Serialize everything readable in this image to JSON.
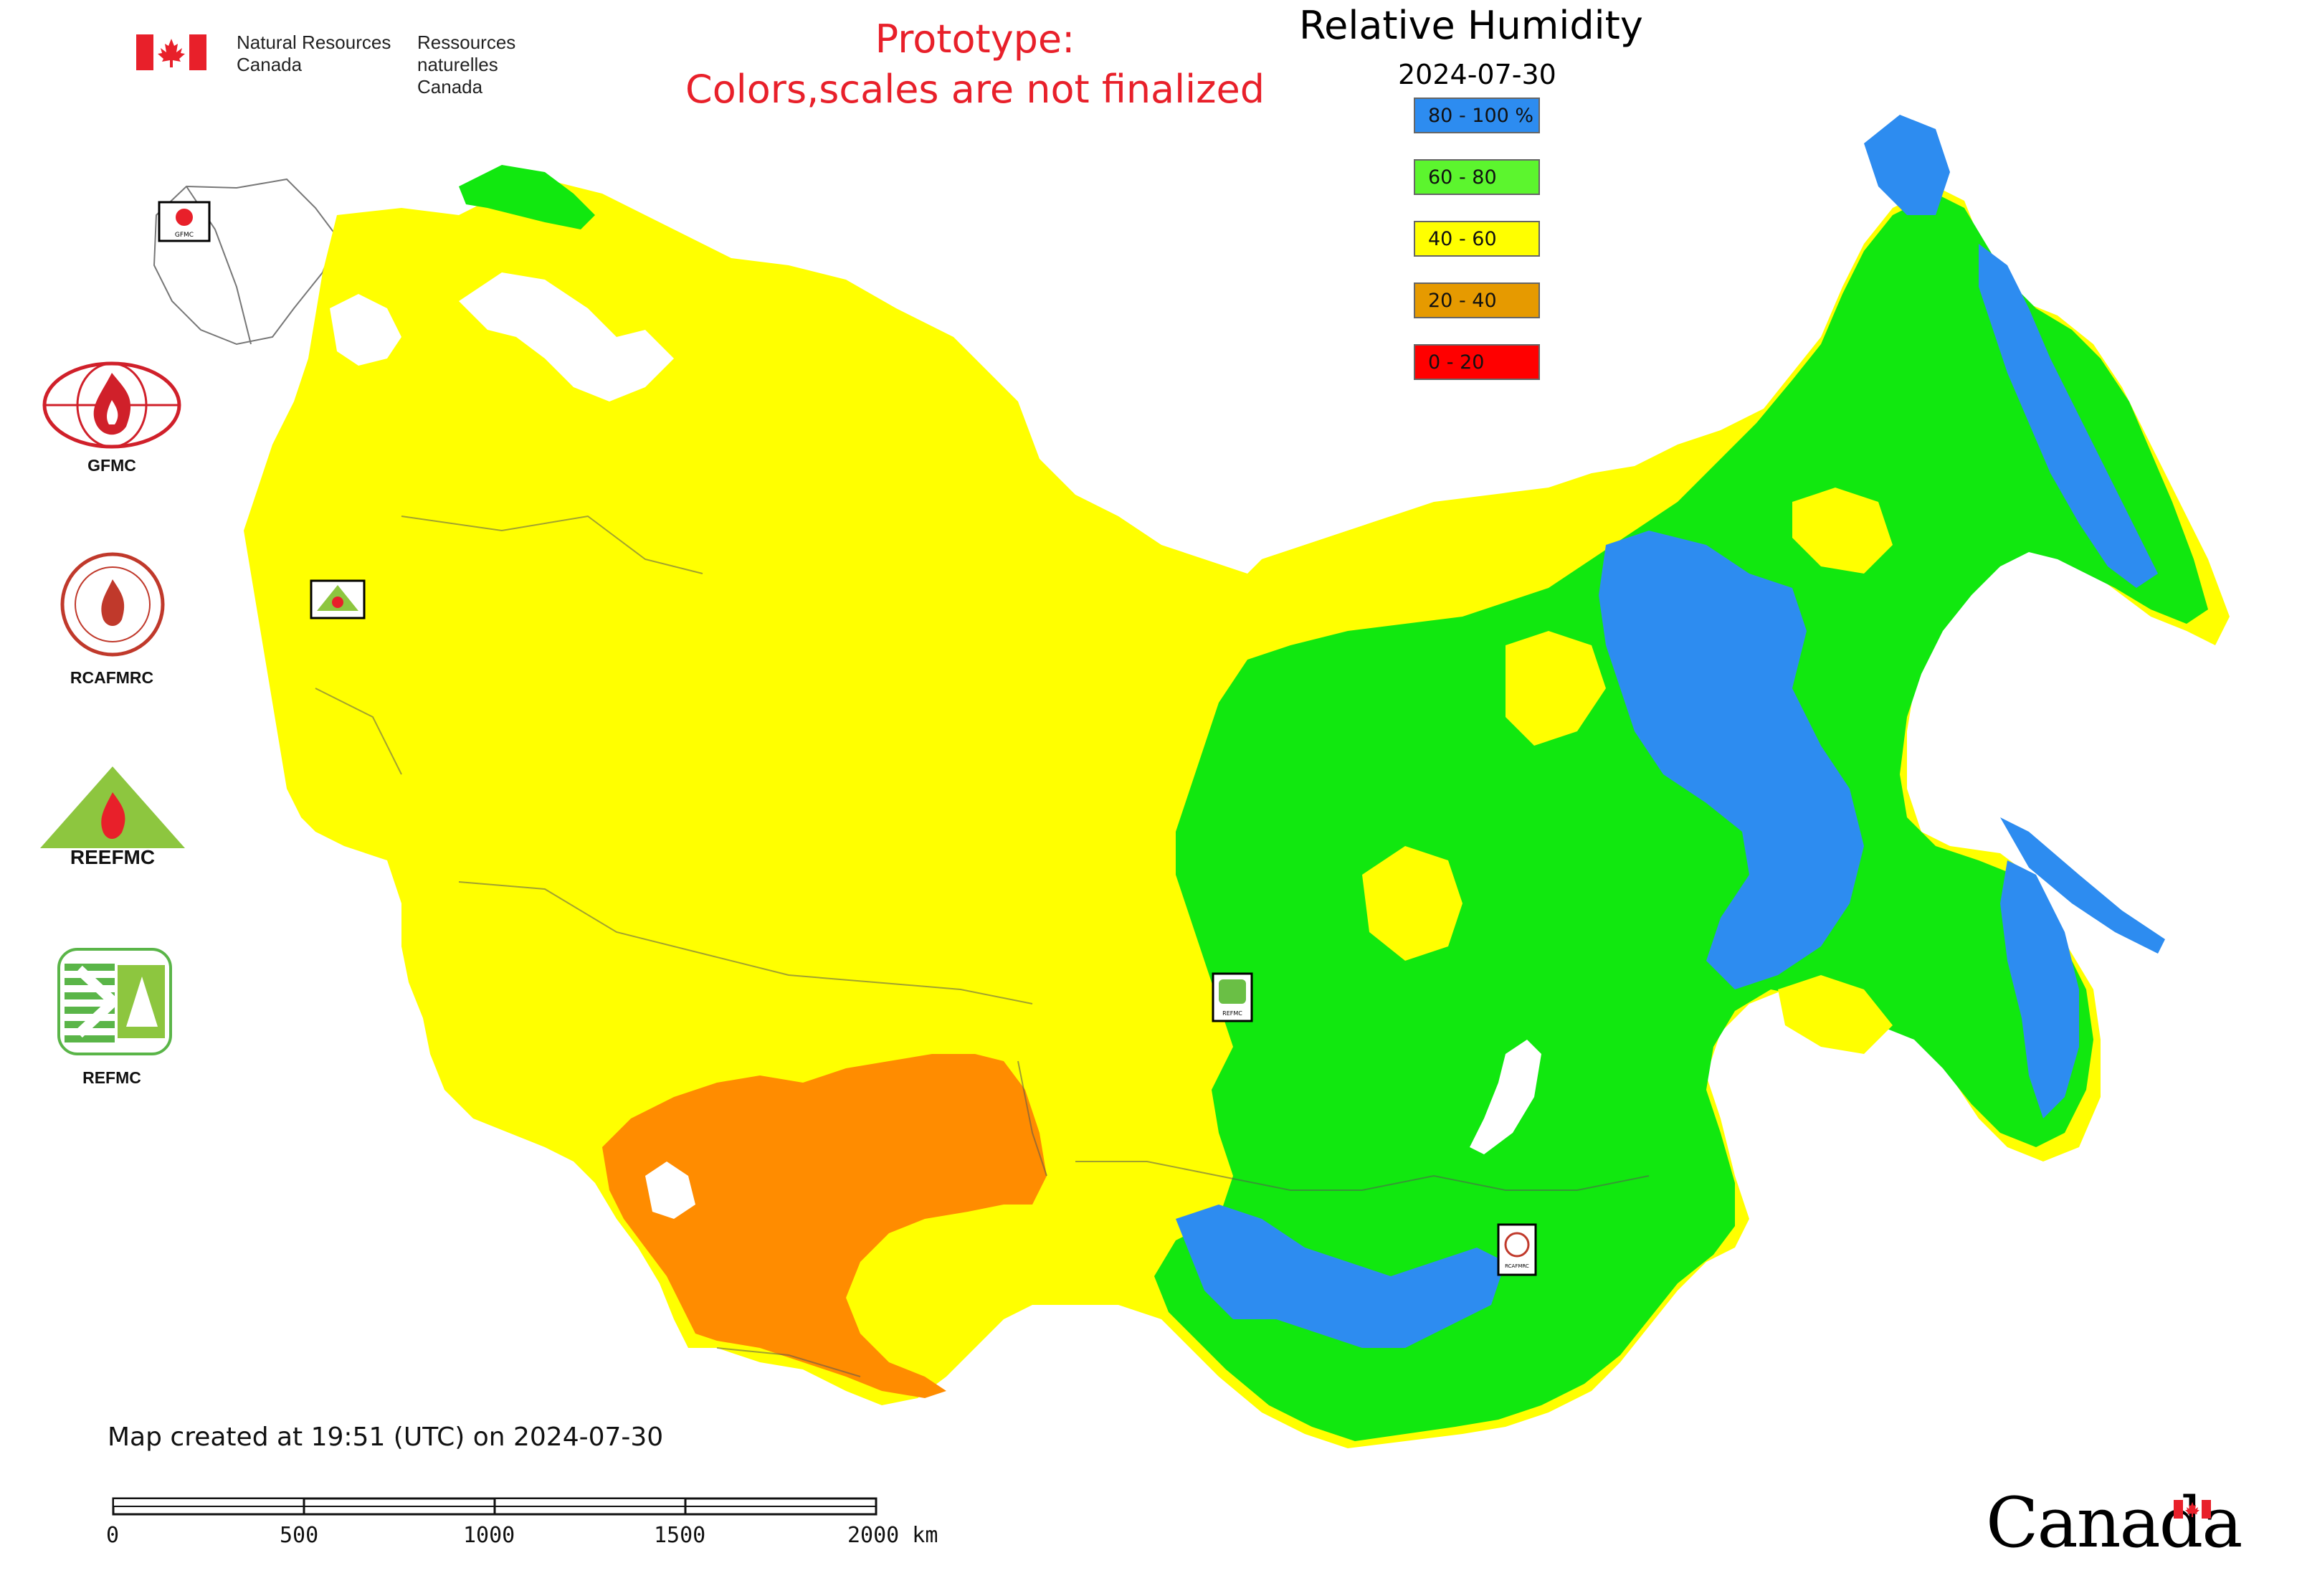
{
  "header": {
    "agency_en_line1": "Natural Resources",
    "agency_en_line2": "Canada",
    "agency_fr_line1": "Ressources naturelles",
    "agency_fr_line2": "Canada"
  },
  "notice": {
    "line1": "Prototype:",
    "line2": "Colors,scales are not finalized",
    "color": "#e8202a"
  },
  "title": "Relative Humidity",
  "date": "2024-07-30",
  "legend": [
    {
      "label": "80 - 100 %",
      "color": "#2d8cf0"
    },
    {
      "label": "60 - 80",
      "color": "#5cf52e"
    },
    {
      "label": "40 - 60",
      "color": "#ffff00"
    },
    {
      "label": "20 - 40",
      "color": "#e69a00"
    },
    {
      "label": "0 - 20",
      "color": "#ff0000"
    }
  ],
  "map_colors": {
    "very_humid": "#2d8cf0",
    "humid": "#11e80f",
    "moderate": "#ffff00",
    "dry": "#ff8c00",
    "very_dry": "#ff0000",
    "border": "#555555"
  },
  "logos": [
    {
      "label": "GFMC",
      "icon": "gfmc-globe-fire-icon"
    },
    {
      "label": "RCAFMRC",
      "icon": "rcafmrc-seal-icon"
    },
    {
      "label": "",
      "icon": "reefmc-triangle-icon",
      "wordmark": "REEFMC"
    },
    {
      "label": "REFMC",
      "icon": "refmc-sigma-icon"
    }
  ],
  "mini_logo_labels": {
    "gfmc": "GFMC",
    "refmc": "REFMC",
    "rcafmrc": "RCAFMRC"
  },
  "footer": {
    "created": "Map created at 19:51 (UTC) on 2024-07-30",
    "scale_ticks": [
      "0",
      "500",
      "1000",
      "1500",
      "2000 km"
    ],
    "brand": "Canada"
  }
}
